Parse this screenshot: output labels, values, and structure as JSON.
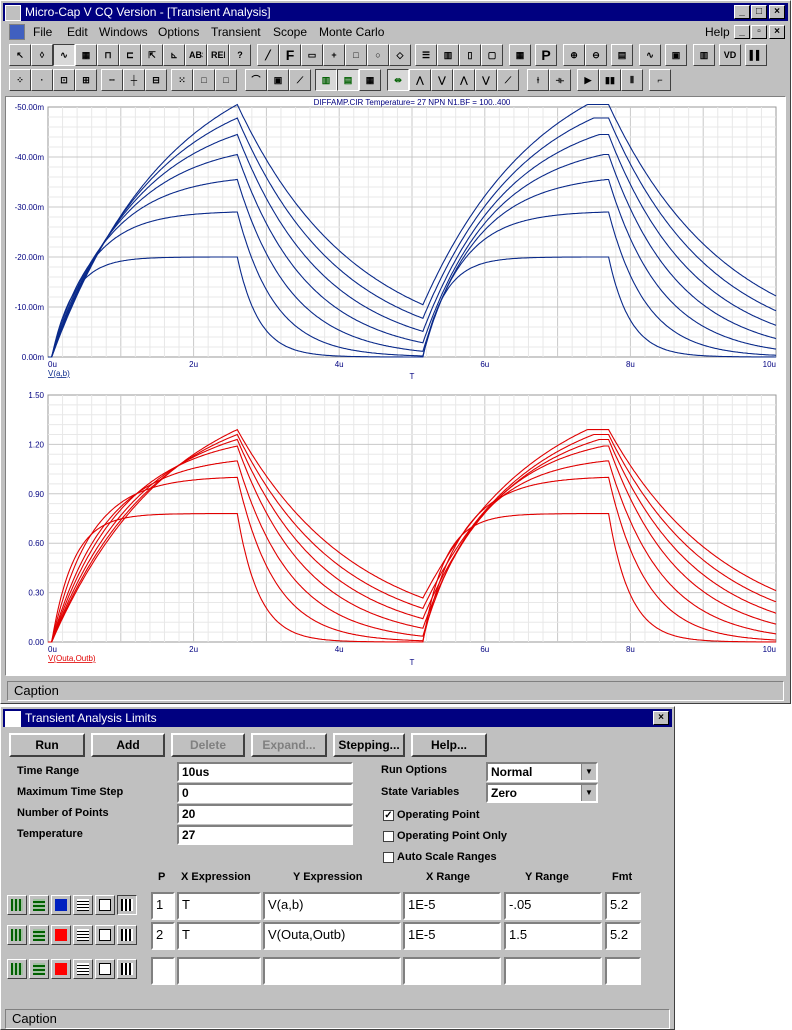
{
  "main_window": {
    "title": "Micro-Cap V CQ Version - [Transient Analysis]",
    "menus": [
      {
        "label": "File"
      },
      {
        "label": "Edit"
      },
      {
        "label": "Windows"
      },
      {
        "label": "Options"
      },
      {
        "label": "Transient"
      },
      {
        "label": "Scope"
      },
      {
        "label": "Monte Carlo"
      }
    ],
    "help_menu": "Help",
    "toolbar_text": {
      "abs": "ABS",
      "rel": "REL",
      "f": "F",
      "p": "P",
      "q": "?"
    },
    "status": "Caption"
  },
  "chart_data": [
    {
      "type": "line",
      "title": "DIFFAMP.CIR Temperature= 27 NPN N1.BF = 100..400",
      "xlabel": "T",
      "ylabel": "V(a,b)",
      "xlim": [
        0,
        10
      ],
      "x_unit": "u",
      "ylim": [
        0,
        -50
      ],
      "y_unit": "m",
      "x_ticks": [
        "0u",
        "2u",
        "4u",
        "6u",
        "8u",
        "10u"
      ],
      "y_ticks": [
        "0.00m",
        "-10.00m",
        "-20.00m",
        "-30.00m",
        "-40.00m",
        "-50.00m"
      ],
      "grid": true,
      "color": "#0a2a8a",
      "series_peaks": [
        -20.0,
        -29.0,
        -35.5,
        -40.5,
        -44.5,
        -47.8,
        -50.5
      ],
      "pulse": {
        "rise_start": 0.05,
        "fall_start": 2.6,
        "period": 5.1
      }
    },
    {
      "type": "line",
      "title": "",
      "xlabel": "T",
      "ylabel": "V(Outa,Outb)",
      "xlim": [
        0,
        10
      ],
      "x_unit": "u",
      "ylim": [
        0,
        1.5
      ],
      "x_ticks": [
        "0u",
        "2u",
        "4u",
        "6u",
        "8u",
        "10u"
      ],
      "y_ticks": [
        "0.00",
        "0.30",
        "0.60",
        "0.90",
        "1.20",
        "1.50"
      ],
      "grid": true,
      "color": "#e00000",
      "series_peaks": [
        0.78,
        1.0,
        1.1,
        1.19,
        1.23,
        1.26,
        1.29
      ],
      "pulse": {
        "rise_start": 0.05,
        "fall_start": 2.6,
        "period": 5.1
      }
    }
  ],
  "limits_window": {
    "title": "Transient Analysis Limits",
    "buttons": [
      {
        "label": "Run",
        "enabled": true
      },
      {
        "label": "Add",
        "enabled": true
      },
      {
        "label": "Delete",
        "enabled": false
      },
      {
        "label": "Expand...",
        "enabled": false
      },
      {
        "label": "Stepping...",
        "enabled": true
      },
      {
        "label": "Help...",
        "enabled": true
      }
    ],
    "fields": [
      {
        "label": "Time Range",
        "value": "10us"
      },
      {
        "label": "Maximum Time Step",
        "value": "0"
      },
      {
        "label": "Number of Points",
        "value": "20"
      },
      {
        "label": "Temperature",
        "value": "27"
      }
    ],
    "run_options": {
      "label": "Run Options",
      "value": "Normal"
    },
    "state_variables": {
      "label": "State Variables",
      "value": "Zero"
    },
    "checkboxes": [
      {
        "label": "Operating Point",
        "checked": true
      },
      {
        "label": "Operating Point Only",
        "checked": false
      },
      {
        "label": "Auto Scale Ranges",
        "checked": false
      }
    ],
    "table": {
      "headers": {
        "p": "P",
        "x_expr": "X Expression",
        "y_expr": "Y Expression",
        "x_range": "X Range",
        "y_range": "Y Range",
        "fmt": "Fmt"
      },
      "rows": [
        {
          "p": "1",
          "x_expr": "T",
          "y_expr": "V(a,b)",
          "x_range": "1E-5",
          "y_range": "-.05",
          "fmt": "5.2",
          "color": "#0020c0"
        },
        {
          "p": "2",
          "x_expr": "T",
          "y_expr": "V(Outa,Outb)",
          "x_range": "1E-5",
          "y_range": "1.5",
          "fmt": "5.2",
          "color": "#ff0000"
        },
        {
          "p": "",
          "x_expr": "",
          "y_expr": "",
          "x_range": "",
          "y_range": "",
          "fmt": "",
          "color": "#ff0000"
        }
      ]
    },
    "status": "Caption"
  }
}
